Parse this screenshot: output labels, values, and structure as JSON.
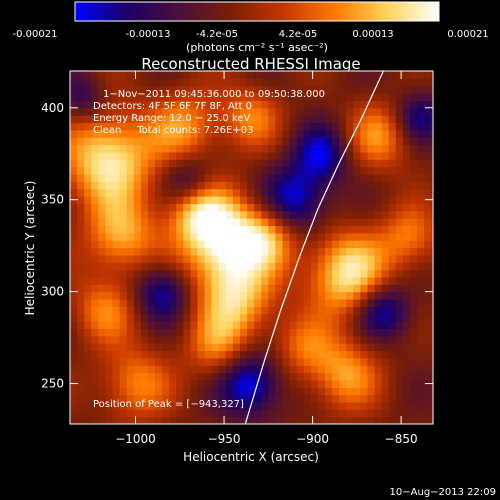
{
  "colorbar": {
    "stops": [
      "#0000ff",
      "#1a0066",
      "#4b0f3a",
      "#7a1f06",
      "#c43600",
      "#ff7a00",
      "#ffd45a",
      "#ffffff"
    ],
    "tick_labels": [
      "-0.00021",
      "-0.00013",
      "-4.2e-05",
      "4.2e-05",
      "0.00013",
      "0.00021"
    ],
    "units": "(photons cm⁻² s⁻¹ asec⁻²)"
  },
  "chart_data": {
    "type": "heatmap",
    "title": "Reconstructed RHESSI Image",
    "xlabel": "Heliocentric X (arcsec)",
    "ylabel": "Heliocentric Y (arcsec)",
    "xlim": [
      -1037,
      -832
    ],
    "ylim": [
      228,
      420
    ],
    "xticks": [
      -1000,
      -950,
      -900,
      -850
    ],
    "yticks": [
      250,
      300,
      350,
      400
    ],
    "xtick_labels": [
      "−1000",
      "−950",
      "−900",
      "−850"
    ],
    "ytick_labels": [
      "250",
      "300",
      "350",
      "400"
    ],
    "annotations": [
      "1−Nov−2011 09:45:36.000 to 09:50:38.000",
      "Detectors: 4F 5F 6F 7F 8F, Att 0",
      "Energy Range: 12.0 − 25.0 keV",
      "Clean     Total counts: 7.26E+03"
    ],
    "peak_label": "Position of Peak = [−943,327]",
    "peak": [
      -943,
      327
    ],
    "limb": [
      [
        -938,
        228
      ],
      [
        -928,
        260
      ],
      [
        -918,
        290
      ],
      [
        -907,
        320
      ],
      [
        -897,
        345
      ],
      [
        -885,
        370
      ],
      [
        -872,
        395
      ],
      [
        -860,
        420
      ]
    ],
    "blobs": [
      {
        "x": -1015,
        "y": 372,
        "a": 0.92,
        "s": 18
      },
      {
        "x": -1008,
        "y": 330,
        "a": 0.65,
        "s": 14
      },
      {
        "x": -1018,
        "y": 290,
        "a": 0.5,
        "s": 13
      },
      {
        "x": -1000,
        "y": 250,
        "a": 0.55,
        "s": 14
      },
      {
        "x": -972,
        "y": 390,
        "a": 0.55,
        "s": 14
      },
      {
        "x": -965,
        "y": 345,
        "a": 0.6,
        "s": 12
      },
      {
        "x": -950,
        "y": 327,
        "a": 1.0,
        "s": 17
      },
      {
        "x": -943,
        "y": 295,
        "a": 0.7,
        "s": 15
      },
      {
        "x": -955,
        "y": 270,
        "a": 0.45,
        "s": 12
      },
      {
        "x": -935,
        "y": 395,
        "a": 0.5,
        "s": 12
      },
      {
        "x": -925,
        "y": 330,
        "a": 0.55,
        "s": 12
      },
      {
        "x": -905,
        "y": 270,
        "a": 0.4,
        "s": 12
      },
      {
        "x": -880,
        "y": 310,
        "a": 0.9,
        "s": 16
      },
      {
        "x": -882,
        "y": 255,
        "a": 0.6,
        "s": 14
      },
      {
        "x": -862,
        "y": 385,
        "a": 0.55,
        "s": 13
      },
      {
        "x": -845,
        "y": 330,
        "a": 0.5,
        "s": 12
      },
      {
        "x": -970,
        "y": 360,
        "a": -0.5,
        "s": 10
      },
      {
        "x": -985,
        "y": 300,
        "a": -0.6,
        "s": 11
      },
      {
        "x": -935,
        "y": 250,
        "a": -0.75,
        "s": 12
      },
      {
        "x": -910,
        "y": 350,
        "a": -0.7,
        "s": 13
      },
      {
        "x": -895,
        "y": 375,
        "a": -0.6,
        "s": 11
      },
      {
        "x": -860,
        "y": 290,
        "a": -0.65,
        "s": 11
      },
      {
        "x": -840,
        "y": 395,
        "a": -0.5,
        "s": 10
      },
      {
        "x": -1030,
        "y": 405,
        "a": -0.4,
        "s": 9
      }
    ]
  },
  "timestamp": "10−Aug−2013 22:09"
}
